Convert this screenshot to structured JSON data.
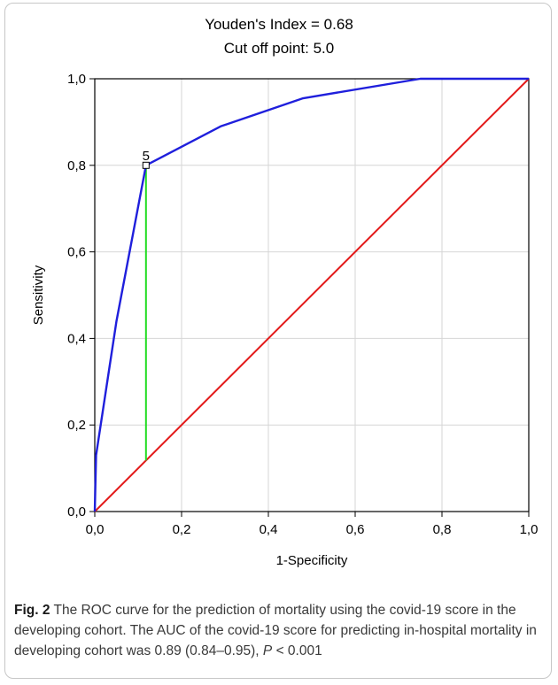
{
  "chart_data": {
    "type": "line",
    "title_lines": [
      "Youden's Index  = 0.68",
      "Cut off point: 5.0"
    ],
    "xlabel": "1-Specificity",
    "ylabel": "Sensitivity",
    "xlim": [
      0,
      1
    ],
    "ylim": [
      0,
      1
    ],
    "xticks": [
      "0,0",
      "0,2",
      "0,4",
      "0,6",
      "0,8",
      "1,0"
    ],
    "yticks": [
      "0,0",
      "0,2",
      "0,4",
      "0,6",
      "0,8",
      "1,0"
    ],
    "grid": true,
    "series": [
      {
        "color": "#1f1fdc",
        "x": [
          0.0,
          0.0,
          0.003,
          0.05,
          0.118,
          0.29,
          0.48,
          0.75,
          1.0
        ],
        "y": [
          0.0,
          0.0,
          0.13,
          0.44,
          0.8,
          0.89,
          0.955,
          1.0,
          1.0
        ]
      },
      {
        "color": "#e31a1a",
        "x": [
          0.0,
          1.0
        ],
        "y": [
          0.0,
          1.0
        ]
      }
    ],
    "youden_line": {
      "color": "#22dd22",
      "x": 0.118,
      "y_from": 0.118,
      "y_to": 0.8
    },
    "annotations": [
      {
        "text": "5",
        "x": 0.118,
        "y": 0.8
      }
    ]
  },
  "caption": {
    "fig_label": "Fig. 2",
    "text_before_p": "  The ROC curve for the prediction of mortality using the covid-19 score in the developing cohort. The AUC of the covid-19 score for predicting in-hospital mortality in developing cohort was 0.89 (0.84–0.95), ",
    "p_symbol": "P",
    "p_value": " < 0.001"
  }
}
